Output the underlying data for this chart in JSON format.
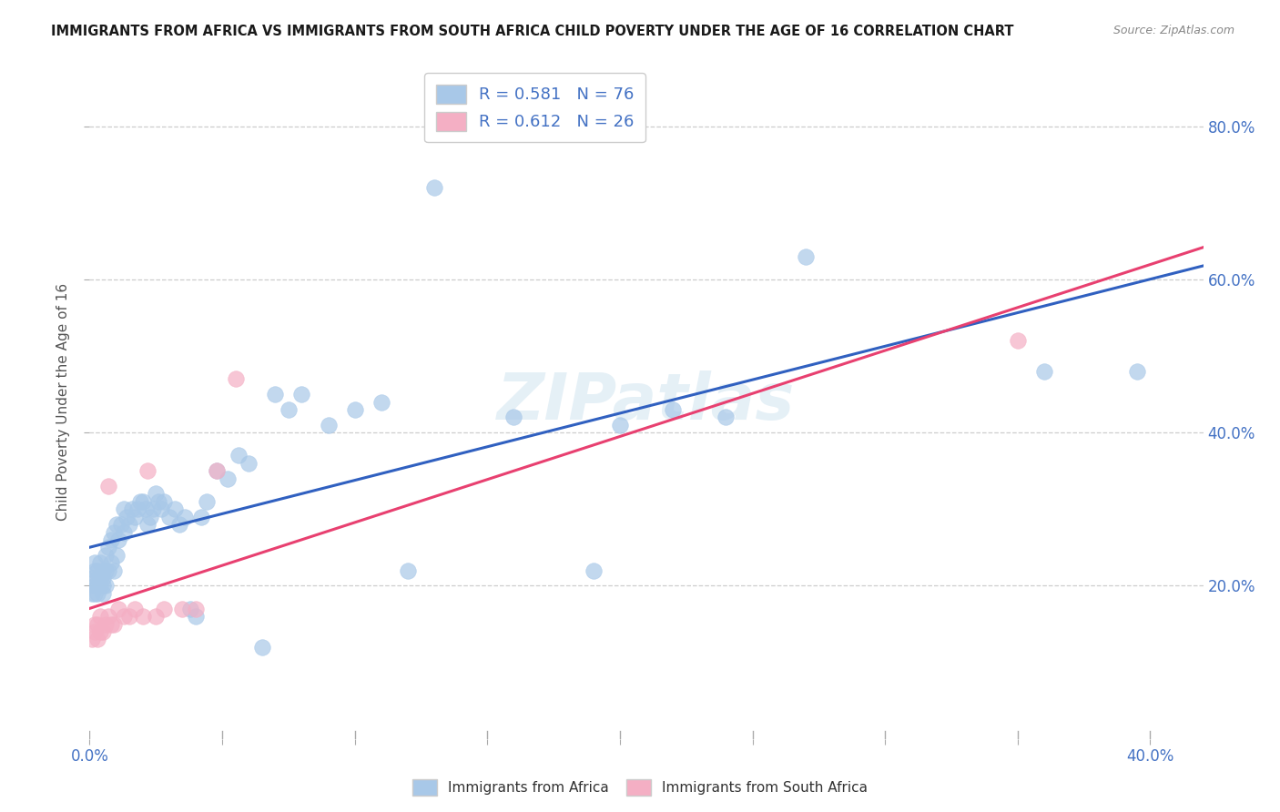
{
  "title": "IMMIGRANTS FROM AFRICA VS IMMIGRANTS FROM SOUTH AFRICA CHILD POVERTY UNDER THE AGE OF 16 CORRELATION CHART",
  "source": "Source: ZipAtlas.com",
  "ylabel": "Child Poverty Under the Age of 16",
  "xlim": [
    0.0,
    0.42
  ],
  "ylim": [
    0.0,
    0.88
  ],
  "xtick_positions": [
    0.0,
    0.05,
    0.1,
    0.15,
    0.2,
    0.25,
    0.3,
    0.35,
    0.4
  ],
  "ytick_positions": [
    0.2,
    0.4,
    0.6,
    0.8
  ],
  "ytick_labels": [
    "20.0%",
    "40.0%",
    "60.0%",
    "80.0%"
  ],
  "watermark": "ZIPatlas",
  "blue_color": "#a8c8e8",
  "pink_color": "#f4afc4",
  "blue_line_color": "#3060c0",
  "pink_line_color": "#e84070",
  "tick_color": "#4472c4",
  "grid_color": "#c8c8c8",
  "background_color": "#ffffff",
  "africa_x": [
    0.001,
    0.001,
    0.002,
    0.002,
    0.002,
    0.002,
    0.003,
    0.003,
    0.003,
    0.003,
    0.004,
    0.004,
    0.004,
    0.005,
    0.005,
    0.005,
    0.005,
    0.006,
    0.006,
    0.006,
    0.007,
    0.007,
    0.008,
    0.008,
    0.009,
    0.009,
    0.01,
    0.01,
    0.011,
    0.012,
    0.013,
    0.013,
    0.014,
    0.015,
    0.016,
    0.017,
    0.018,
    0.019,
    0.02,
    0.021,
    0.022,
    0.023,
    0.024,
    0.025,
    0.026,
    0.027,
    0.028,
    0.03,
    0.032,
    0.034,
    0.036,
    0.038,
    0.04,
    0.042,
    0.044,
    0.048,
    0.052,
    0.056,
    0.06,
    0.065,
    0.07,
    0.075,
    0.08,
    0.09,
    0.1,
    0.11,
    0.12,
    0.13,
    0.16,
    0.19,
    0.2,
    0.22,
    0.24,
    0.27,
    0.36,
    0.395
  ],
  "africa_y": [
    0.19,
    0.21,
    0.19,
    0.2,
    0.22,
    0.23,
    0.19,
    0.2,
    0.21,
    0.22,
    0.2,
    0.21,
    0.23,
    0.19,
    0.2,
    0.21,
    0.22,
    0.2,
    0.22,
    0.24,
    0.22,
    0.25,
    0.23,
    0.26,
    0.22,
    0.27,
    0.24,
    0.28,
    0.26,
    0.28,
    0.27,
    0.3,
    0.29,
    0.28,
    0.3,
    0.29,
    0.3,
    0.31,
    0.31,
    0.3,
    0.28,
    0.29,
    0.3,
    0.32,
    0.31,
    0.3,
    0.31,
    0.29,
    0.3,
    0.28,
    0.29,
    0.17,
    0.16,
    0.29,
    0.31,
    0.35,
    0.34,
    0.37,
    0.36,
    0.12,
    0.45,
    0.43,
    0.45,
    0.41,
    0.43,
    0.44,
    0.22,
    0.72,
    0.42,
    0.22,
    0.41,
    0.43,
    0.42,
    0.63,
    0.48,
    0.48
  ],
  "south_africa_x": [
    0.001,
    0.002,
    0.002,
    0.003,
    0.003,
    0.004,
    0.004,
    0.005,
    0.006,
    0.007,
    0.007,
    0.008,
    0.009,
    0.011,
    0.013,
    0.015,
    0.017,
    0.02,
    0.022,
    0.025,
    0.028,
    0.035,
    0.04,
    0.048,
    0.055,
    0.35
  ],
  "south_africa_y": [
    0.13,
    0.14,
    0.15,
    0.13,
    0.15,
    0.14,
    0.16,
    0.14,
    0.15,
    0.16,
    0.33,
    0.15,
    0.15,
    0.17,
    0.16,
    0.16,
    0.17,
    0.16,
    0.35,
    0.16,
    0.17,
    0.17,
    0.17,
    0.35,
    0.47,
    0.52
  ]
}
